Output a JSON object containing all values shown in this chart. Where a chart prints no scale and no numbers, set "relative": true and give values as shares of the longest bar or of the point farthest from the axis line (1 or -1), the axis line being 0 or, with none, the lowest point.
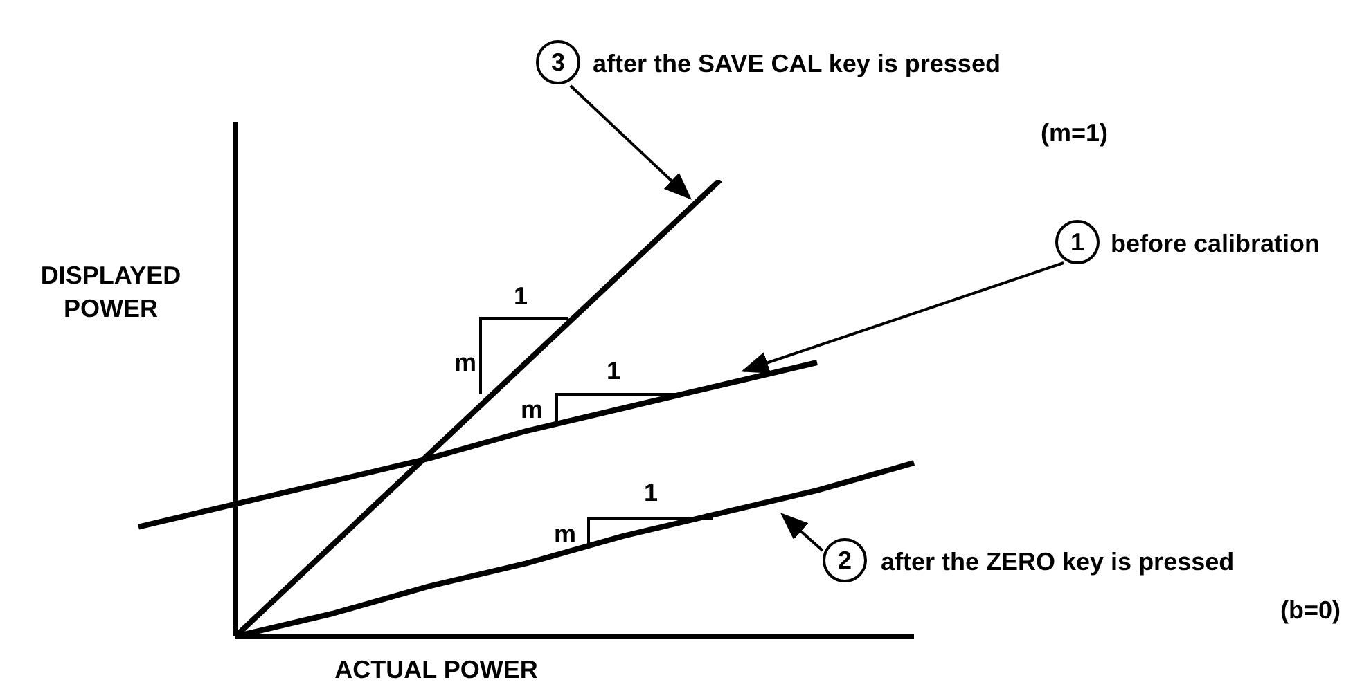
{
  "chart_data": {
    "type": "line",
    "relative": true,
    "xlabel": "ACTUAL POWER",
    "ylabel": "DISPLAYED POWER",
    "categories": [
      null,
      null,
      null,
      null,
      null,
      null,
      null,
      null,
      null
    ],
    "series": [
      {
        "color": "#000000",
        "values": [
          0.24,
          0.29,
          0.34,
          0.39,
          0.45,
          0.5,
          0.55,
          0.6,
          null
        ]
      },
      {
        "color": "#000000",
        "values": [
          null,
          0,
          0.05,
          0.11,
          0.16,
          0.22,
          0.27,
          0.32,
          0.38
        ]
      },
      {
        "color": "#000000",
        "values": [
          null,
          0,
          0.2,
          0.4,
          0.6,
          0.8,
          1.0,
          null,
          null
        ]
      }
    ],
    "annotations": [
      "3",
      "after the SAVE CAL key is pressed",
      "(m=1)",
      "1",
      "before calibration",
      "2",
      "after the ZERO key is pressed",
      "(b=0)",
      "m",
      "1",
      "m",
      "1",
      "m",
      "1"
    ]
  }
}
